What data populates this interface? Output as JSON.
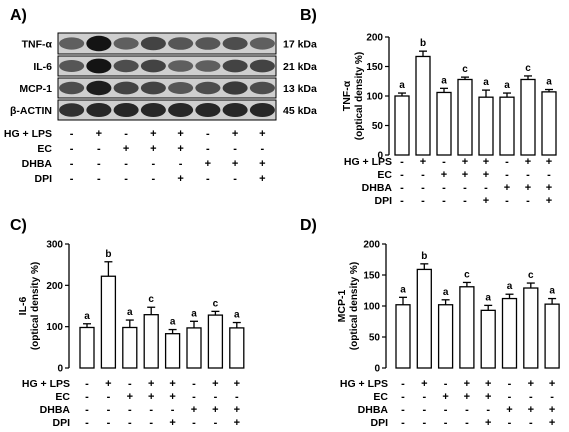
{
  "panels": {
    "a": {
      "letter": "A)"
    },
    "b": {
      "letter": "B)"
    },
    "c": {
      "letter": "C)"
    },
    "d": {
      "letter": "D)"
    }
  },
  "blot": {
    "rows": [
      {
        "protein": "TNF-α",
        "kda": "17 kDa"
      },
      {
        "protein": "IL-6",
        "kda": "21 kDa"
      },
      {
        "protein": "MCP-1",
        "kda": "13 kDa"
      },
      {
        "protein": "β-ACTIN",
        "kda": "45 kDa"
      }
    ]
  },
  "treatments": {
    "labels": [
      "HG + LPS",
      "EC",
      "DHBA",
      "DPI"
    ],
    "signs": [
      [
        "-",
        "+",
        "-",
        "+",
        "+",
        "-",
        "+",
        "+"
      ],
      [
        "-",
        "-",
        "+",
        "+",
        "+",
        "-",
        "-",
        "-"
      ],
      [
        "-",
        "-",
        "-",
        "-",
        "-",
        "+",
        "+",
        "+"
      ],
      [
        "-",
        "-",
        "-",
        "-",
        "+",
        "-",
        "-",
        "+"
      ]
    ]
  },
  "chart_data": [
    {
      "panel": "B)",
      "type": "bar",
      "ylabel": [
        "TNF-α",
        "(optical density %)"
      ],
      "ylim": [
        0,
        200
      ],
      "yticks": [
        "0",
        "50",
        "100",
        "150",
        "200"
      ],
      "values": [
        100,
        167,
        106,
        128,
        98,
        98,
        128,
        107
      ],
      "errors": [
        5,
        9,
        7,
        4,
        12,
        7,
        6,
        4
      ],
      "letters": [
        "a",
        "b",
        "a",
        "c",
        "a",
        "a",
        "c",
        "a"
      ]
    },
    {
      "panel": "C)",
      "type": "bar",
      "ylabel": [
        "IL-6",
        "(optical density %)"
      ],
      "ylim": [
        0,
        300
      ],
      "yticks": [
        "0",
        "100",
        "200",
        "300"
      ],
      "values": [
        98,
        222,
        98,
        129,
        83,
        97,
        128,
        97
      ],
      "errors": [
        9,
        35,
        18,
        18,
        10,
        16,
        9,
        13
      ],
      "letters": [
        "a",
        "b",
        "a",
        "c",
        "a",
        "a",
        "c",
        "a"
      ]
    },
    {
      "panel": "D)",
      "type": "bar",
      "ylabel": [
        "MCP-1",
        "(optical density %)"
      ],
      "ylim": [
        0,
        200
      ],
      "yticks": [
        "0",
        "50",
        "100",
        "150",
        "200"
      ],
      "values": [
        102,
        159,
        102,
        131,
        93,
        112,
        129,
        103
      ],
      "errors": [
        12,
        9,
        8,
        7,
        8,
        7,
        8,
        9
      ],
      "letters": [
        "a",
        "b",
        "a",
        "c",
        "a",
        "a",
        "c",
        "a"
      ]
    }
  ]
}
